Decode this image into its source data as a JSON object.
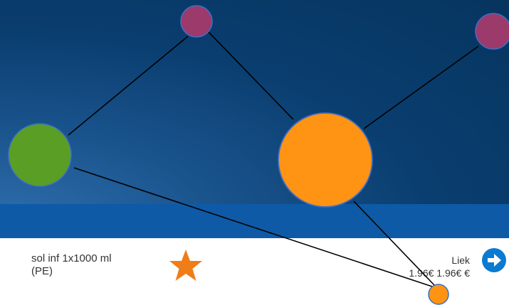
{
  "product": {
    "name_line1": "sol inf 1x1000 ml",
    "name_line2": "(PE)",
    "favorite_icon": "star-icon",
    "favorite_color": "#f07d17"
  },
  "seller": {
    "name": "Liek",
    "price": "1.96€ 1.96€ €"
  },
  "actions": {
    "go_icon": "arrow-right-icon",
    "go_color": "#0b7ad1"
  },
  "graph": {
    "node_colors": {
      "magenta": "#9c3a6c",
      "green": "#5a9e26",
      "orange": "#ff9414"
    }
  }
}
